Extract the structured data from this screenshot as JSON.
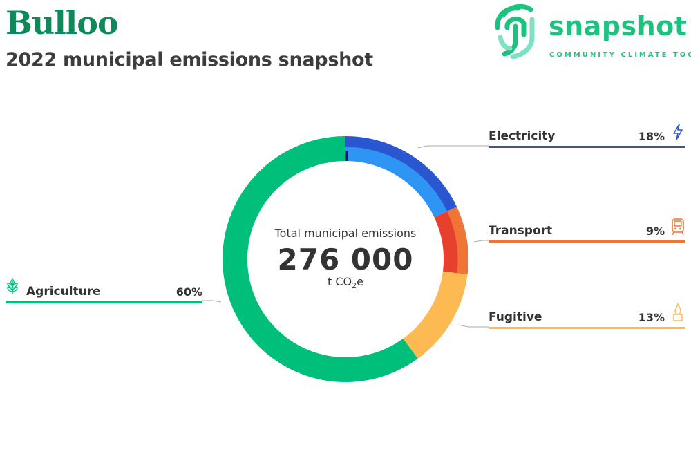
{
  "header": {
    "title": "Bulloo",
    "subtitle": "2022 municipal emissions snapshot"
  },
  "logo": {
    "wordmark": "snapshot",
    "tagline": "COMMUNITY CLIMATE TOOL",
    "color": "#1ec27f"
  },
  "center": {
    "label": "Total municipal emissions",
    "value": "276 000",
    "unit_prefix": "t CO",
    "unit_sub": "2",
    "unit_suffix": "e"
  },
  "chart_data": {
    "type": "pie",
    "total": 276000,
    "unit": "t CO2e",
    "categories": [
      "Electricity",
      "Transport",
      "Fugitive",
      "Agriculture"
    ],
    "values": [
      18,
      9,
      13,
      60
    ],
    "labels": [
      "18%",
      "9%",
      "13%",
      "60%"
    ],
    "series": [
      {
        "name": "Electricity",
        "value": 18,
        "color": "#2a56d1",
        "inner_color": "#2f95f5",
        "icon": "lightning-icon"
      },
      {
        "name": "Transport",
        "value": 9,
        "color": "#f07435",
        "inner_color": "#e8402e",
        "icon": "train-icon"
      },
      {
        "name": "Fugitive",
        "value": 13,
        "color": "#fdba53",
        "inner_color": "#fdba53",
        "icon": "flame-icon"
      },
      {
        "name": "Agriculture",
        "value": 60,
        "color": "#00bf7a",
        "inner_color": "#00bf7a",
        "icon": "wheat-icon"
      }
    ]
  },
  "legend": {
    "electricity": {
      "name": "Electricity",
      "pct": "18%"
    },
    "transport": {
      "name": "Transport",
      "pct": "9%"
    },
    "fugitive": {
      "name": "Fugitive",
      "pct": "13%"
    },
    "agriculture": {
      "name": "Agriculture",
      "pct": "60%"
    }
  }
}
